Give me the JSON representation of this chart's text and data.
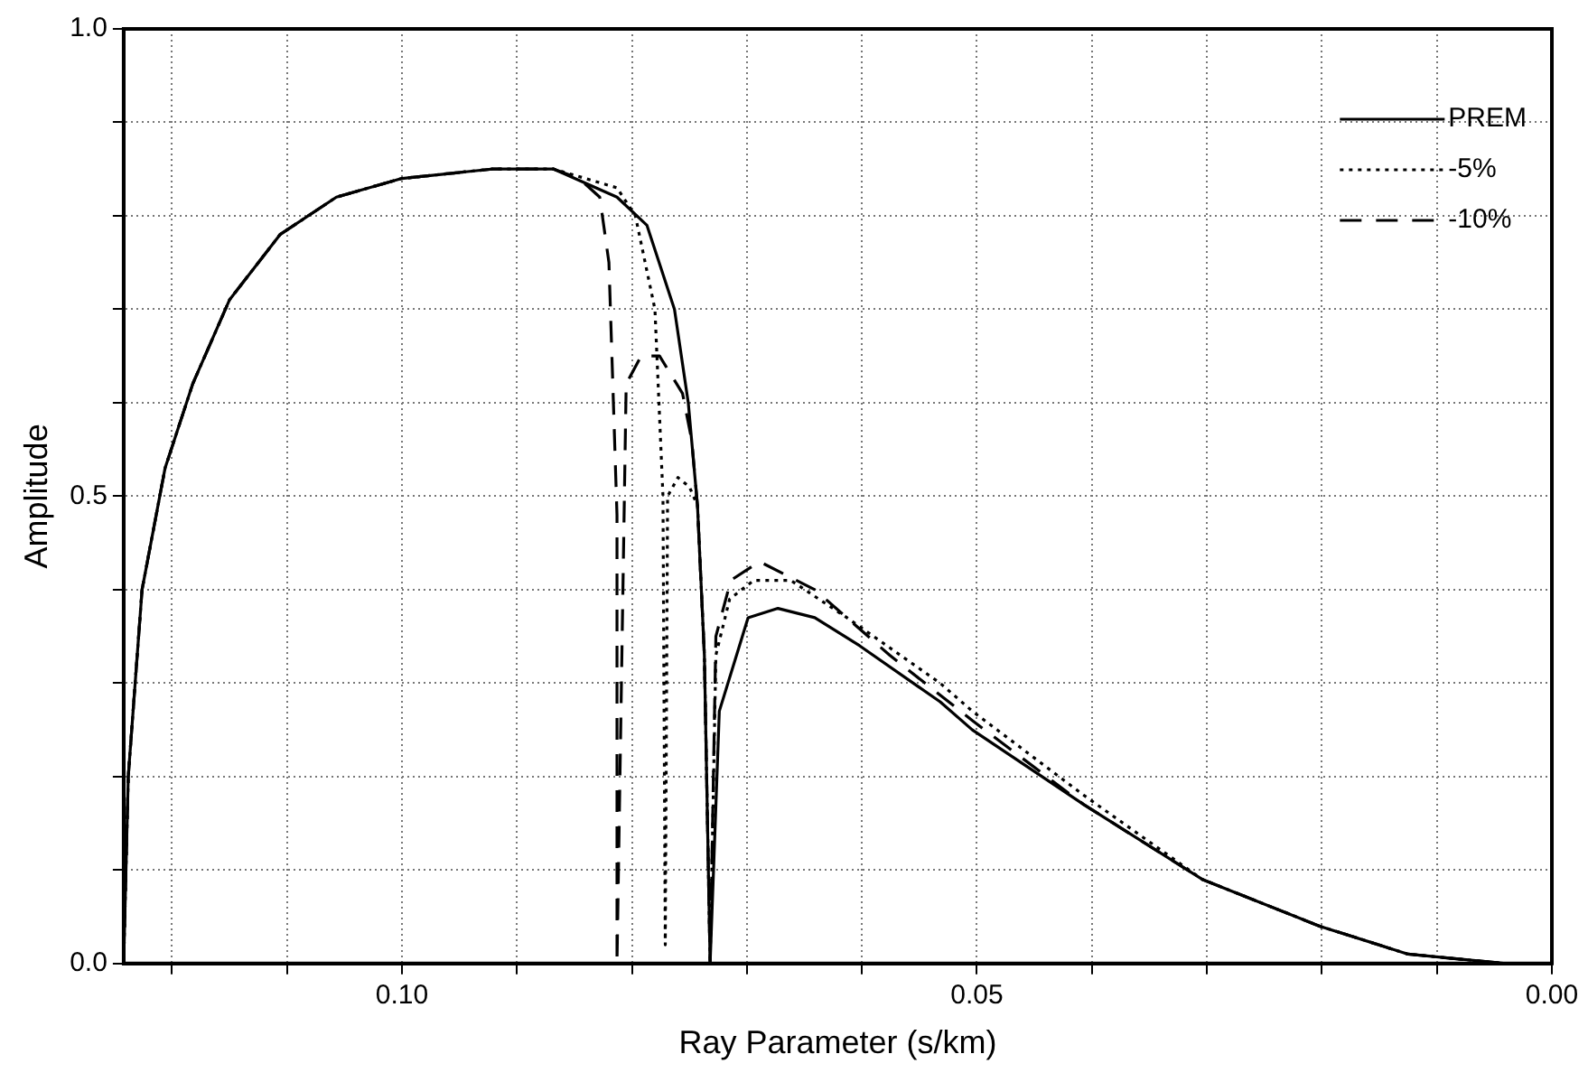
{
  "chart_data": {
    "type": "line",
    "xlabel": "Ray Parameter (s/km)",
    "ylabel": "Amplitude",
    "xlim": [
      0.1242,
      0
    ],
    "ylim": [
      0,
      1
    ],
    "xticks": [
      {
        "value": 0.12,
        "label": null
      },
      {
        "value": 0.11,
        "label": null
      },
      {
        "value": 0.1,
        "label": "0.10"
      },
      {
        "value": 0.09,
        "label": null
      },
      {
        "value": 0.08,
        "label": null
      },
      {
        "value": 0.07,
        "label": null
      },
      {
        "value": 0.06,
        "label": null
      },
      {
        "value": 0.05,
        "label": "0.05"
      },
      {
        "value": 0.04,
        "label": null
      },
      {
        "value": 0.03,
        "label": null
      },
      {
        "value": 0.02,
        "label": null
      },
      {
        "value": 0.01,
        "label": null
      },
      {
        "value": 0,
        "label": "0.00"
      }
    ],
    "yticks": [
      {
        "value": 0,
        "label": "0.0"
      },
      {
        "value": 0.1,
        "label": null
      },
      {
        "value": 0.2,
        "label": null
      },
      {
        "value": 0.3,
        "label": null
      },
      {
        "value": 0.4,
        "label": null
      },
      {
        "value": 0.5,
        "label": "0.5"
      },
      {
        "value": 0.6,
        "label": null
      },
      {
        "value": 0.7,
        "label": null
      },
      {
        "value": 0.8,
        "label": null
      },
      {
        "value": 0.9,
        "label": null
      },
      {
        "value": 1,
        "label": "1.0"
      }
    ],
    "grid": true,
    "legend": "top right",
    "marker": "none",
    "series": [
      {
        "name": "PREM",
        "color": "#000000",
        "line_style": "solid",
        "x": [
          0.1242,
          0.1238,
          0.1226,
          0.1206,
          0.1182,
          0.115,
          0.1106,
          0.1057,
          0.1,
          0.0922,
          0.0868,
          0.0813,
          0.0787,
          0.0763,
          0.0751,
          0.0743,
          0.0737,
          0.0732,
          0.0724,
          0.0699,
          0.0673,
          0.0641,
          0.0602,
          0.0532,
          0.0504,
          0.0407,
          0.0304,
          0.0202,
          0.0125,
          0.004,
          0
        ],
        "values": [
          0,
          0.2,
          0.4,
          0.53,
          0.62,
          0.71,
          0.78,
          0.82,
          0.84,
          0.85,
          0.85,
          0.82,
          0.79,
          0.7,
          0.6,
          0.49,
          0.33,
          0,
          0.27,
          0.37,
          0.38,
          0.37,
          0.34,
          0.28,
          0.25,
          0.17,
          0.09,
          0.04,
          0.01,
          0,
          0
        ]
      },
      {
        "name": "-5%",
        "color": "#000000",
        "line_style": "dotted",
        "x": [
          0.1242,
          0.1238,
          0.1226,
          0.1206,
          0.1182,
          0.115,
          0.1106,
          0.1057,
          0.1,
          0.0922,
          0.0868,
          0.0813,
          0.0797,
          0.078,
          0.0773,
          0.0771,
          0.0769,
          0.076,
          0.075,
          0.0743,
          0.0737,
          0.0732,
          0.0727,
          0.0715,
          0.0694,
          0.0662,
          0.0613,
          0.0532,
          0.0504,
          0.0407,
          0.0304,
          0.0202,
          0.0125,
          0.004,
          0
        ],
        "values": [
          0,
          0.2,
          0.4,
          0.53,
          0.62,
          0.71,
          0.78,
          0.82,
          0.84,
          0.85,
          0.85,
          0.83,
          0.8,
          0.7,
          0.5,
          0.02,
          0.5,
          0.52,
          0.51,
          0.49,
          0.33,
          0,
          0.33,
          0.39,
          0.41,
          0.41,
          0.37,
          0.3,
          0.27,
          0.18,
          0.09,
          0.04,
          0.01,
          0,
          0
        ]
      },
      {
        "name": "-10%",
        "color": "#000000",
        "line_style": "dashed",
        "x": [
          0.1242,
          0.1238,
          0.1226,
          0.1206,
          0.1182,
          0.115,
          0.1106,
          0.1057,
          0.1,
          0.0922,
          0.0868,
          0.0846,
          0.0828,
          0.082,
          0.0813,
          0.0813,
          0.0805,
          0.0792,
          0.0776,
          0.0756,
          0.0748,
          0.0743,
          0.0737,
          0.0732,
          0.0727,
          0.0714,
          0.0689,
          0.0641,
          0.0576,
          0.0504,
          0.0407,
          0.0304,
          0.0202,
          0.0125,
          0.004,
          0
        ],
        "values": [
          0,
          0.2,
          0.4,
          0.53,
          0.62,
          0.71,
          0.78,
          0.82,
          0.84,
          0.85,
          0.85,
          0.84,
          0.82,
          0.75,
          0.48,
          0,
          0.62,
          0.65,
          0.65,
          0.61,
          0.56,
          0.49,
          0.33,
          0,
          0.35,
          0.41,
          0.43,
          0.4,
          0.33,
          0.26,
          0.17,
          0.09,
          0.04,
          0.01,
          0,
          0
        ]
      }
    ]
  }
}
